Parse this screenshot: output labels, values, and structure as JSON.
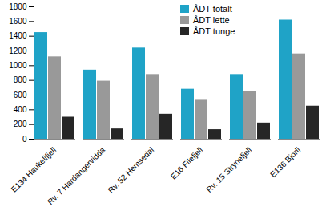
{
  "chart_data": {
    "type": "bar",
    "categories": [
      "E134 Haukelifjell",
      "Rv. 7 Hardangervidda",
      "Rv. 52 Hemsedal",
      "E16 Filefjell",
      "Rv. 15 Strynefjell",
      "E136 Bjorli"
    ],
    "series": [
      {
        "name": "ÅDT totalt",
        "color": "#1fa3c7",
        "values": [
          1450,
          940,
          1240,
          680,
          880,
          1620
        ]
      },
      {
        "name": "ÅDT lette",
        "color": "#999999",
        "values": [
          1120,
          790,
          880,
          530,
          650,
          1160
        ]
      },
      {
        "name": "ÅDT tunge",
        "color": "#262626",
        "values": [
          300,
          140,
          340,
          130,
          220,
          450
        ]
      }
    ],
    "ylim": [
      0,
      1800
    ],
    "yticks": [
      0,
      200,
      400,
      600,
      800,
      1000,
      1200,
      1400,
      1600,
      1800
    ],
    "grid": false,
    "legend": "top-right"
  }
}
